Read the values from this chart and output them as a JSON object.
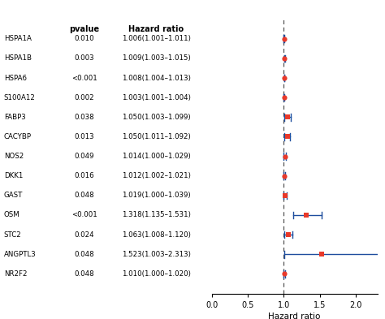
{
  "genes": [
    "HSPA1A",
    "HSPA1B",
    "HSPA6",
    "S100A12",
    "FABP3",
    "CACYBP",
    "NOS2",
    "DKK1",
    "GAST",
    "OSM",
    "STC2",
    "ANGPTL3",
    "NR2F2"
  ],
  "pvalues": [
    "0.010",
    "0.003",
    "<0.001",
    "0.002",
    "0.038",
    "0.013",
    "0.049",
    "0.016",
    "0.048",
    "<0.001",
    "0.024",
    "0.048",
    "0.048"
  ],
  "hr_labels": [
    "1.006(1.001–1.011)",
    "1.009(1.003–1.015)",
    "1.008(1.004–1.013)",
    "1.003(1.001–1.004)",
    "1.050(1.003–1.099)",
    "1.050(1.011–1.092)",
    "1.014(1.000–1.029)",
    "1.012(1.002–1.021)",
    "1.019(1.000–1.039)",
    "1.318(1.135–1.531)",
    "1.063(1.008–1.120)",
    "1.523(1.003–2.313)",
    "1.010(1.000–1.020)"
  ],
  "hr": [
    1.006,
    1.009,
    1.008,
    1.003,
    1.05,
    1.05,
    1.014,
    1.012,
    1.019,
    1.318,
    1.063,
    1.523,
    1.01
  ],
  "ci_low": [
    1.001,
    1.003,
    1.004,
    1.001,
    1.003,
    1.011,
    1.0,
    1.002,
    1.0,
    1.135,
    1.008,
    1.003,
    1.0
  ],
  "ci_high": [
    1.011,
    1.015,
    1.013,
    1.004,
    1.099,
    1.092,
    1.029,
    1.021,
    1.039,
    1.531,
    1.12,
    2.313,
    1.02
  ],
  "marker_style": [
    "o",
    "o",
    "o",
    "o",
    "s",
    "s",
    "o",
    "o",
    "s",
    "s",
    "s",
    "s",
    "o"
  ],
  "dot_color": "#e8392a",
  "line_color": "#1e4d9e",
  "ref_line": 1.0,
  "xlim": [
    0.0,
    2.3
  ],
  "xticks": [
    0.0,
    0.5,
    1.0,
    1.5,
    2.0
  ],
  "xlabel": "Hazard ratio",
  "header_pvalue": "pvalue",
  "header_hr": "Hazard ratio",
  "background_color": "#ffffff",
  "dashed_line_color": "#555555"
}
